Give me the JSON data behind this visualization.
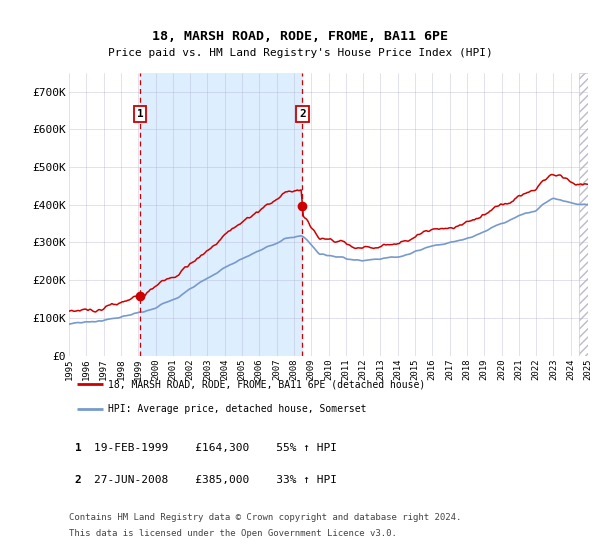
{
  "title": "18, MARSH ROAD, RODE, FROME, BA11 6PE",
  "subtitle": "Price paid vs. HM Land Registry's House Price Index (HPI)",
  "legend_line1": "18, MARSH ROAD, RODE, FROME, BA11 6PE (detached house)",
  "legend_line2": "HPI: Average price, detached house, Somerset",
  "footnote1": "Contains HM Land Registry data © Crown copyright and database right 2024.",
  "footnote2": "This data is licensed under the Open Government Licence v3.0.",
  "sale1_label": "1",
  "sale1_date": "19-FEB-1999",
  "sale1_price": "£164,300",
  "sale1_hpi": "55% ↑ HPI",
  "sale1_year": 1999.12,
  "sale1_value": 164300,
  "sale2_label": "2",
  "sale2_date": "27-JUN-2008",
  "sale2_price": "£385,000",
  "sale2_hpi": "33% ↑ HPI",
  "sale2_year": 2008.49,
  "sale2_value": 385000,
  "red_color": "#cc0000",
  "blue_color": "#7799cc",
  "shaded_color": "#ddeeff",
  "grid_color": "#aaaacc",
  "bg_color": "#ffffff",
  "ylim": [
    0,
    750000
  ],
  "yticks": [
    0,
    100000,
    200000,
    300000,
    400000,
    500000,
    600000,
    700000
  ],
  "ytick_labels": [
    "£0",
    "£100K",
    "£200K",
    "£300K",
    "£400K",
    "£500K",
    "£600K",
    "£700K"
  ],
  "xmin": 1995,
  "xmax": 2025
}
